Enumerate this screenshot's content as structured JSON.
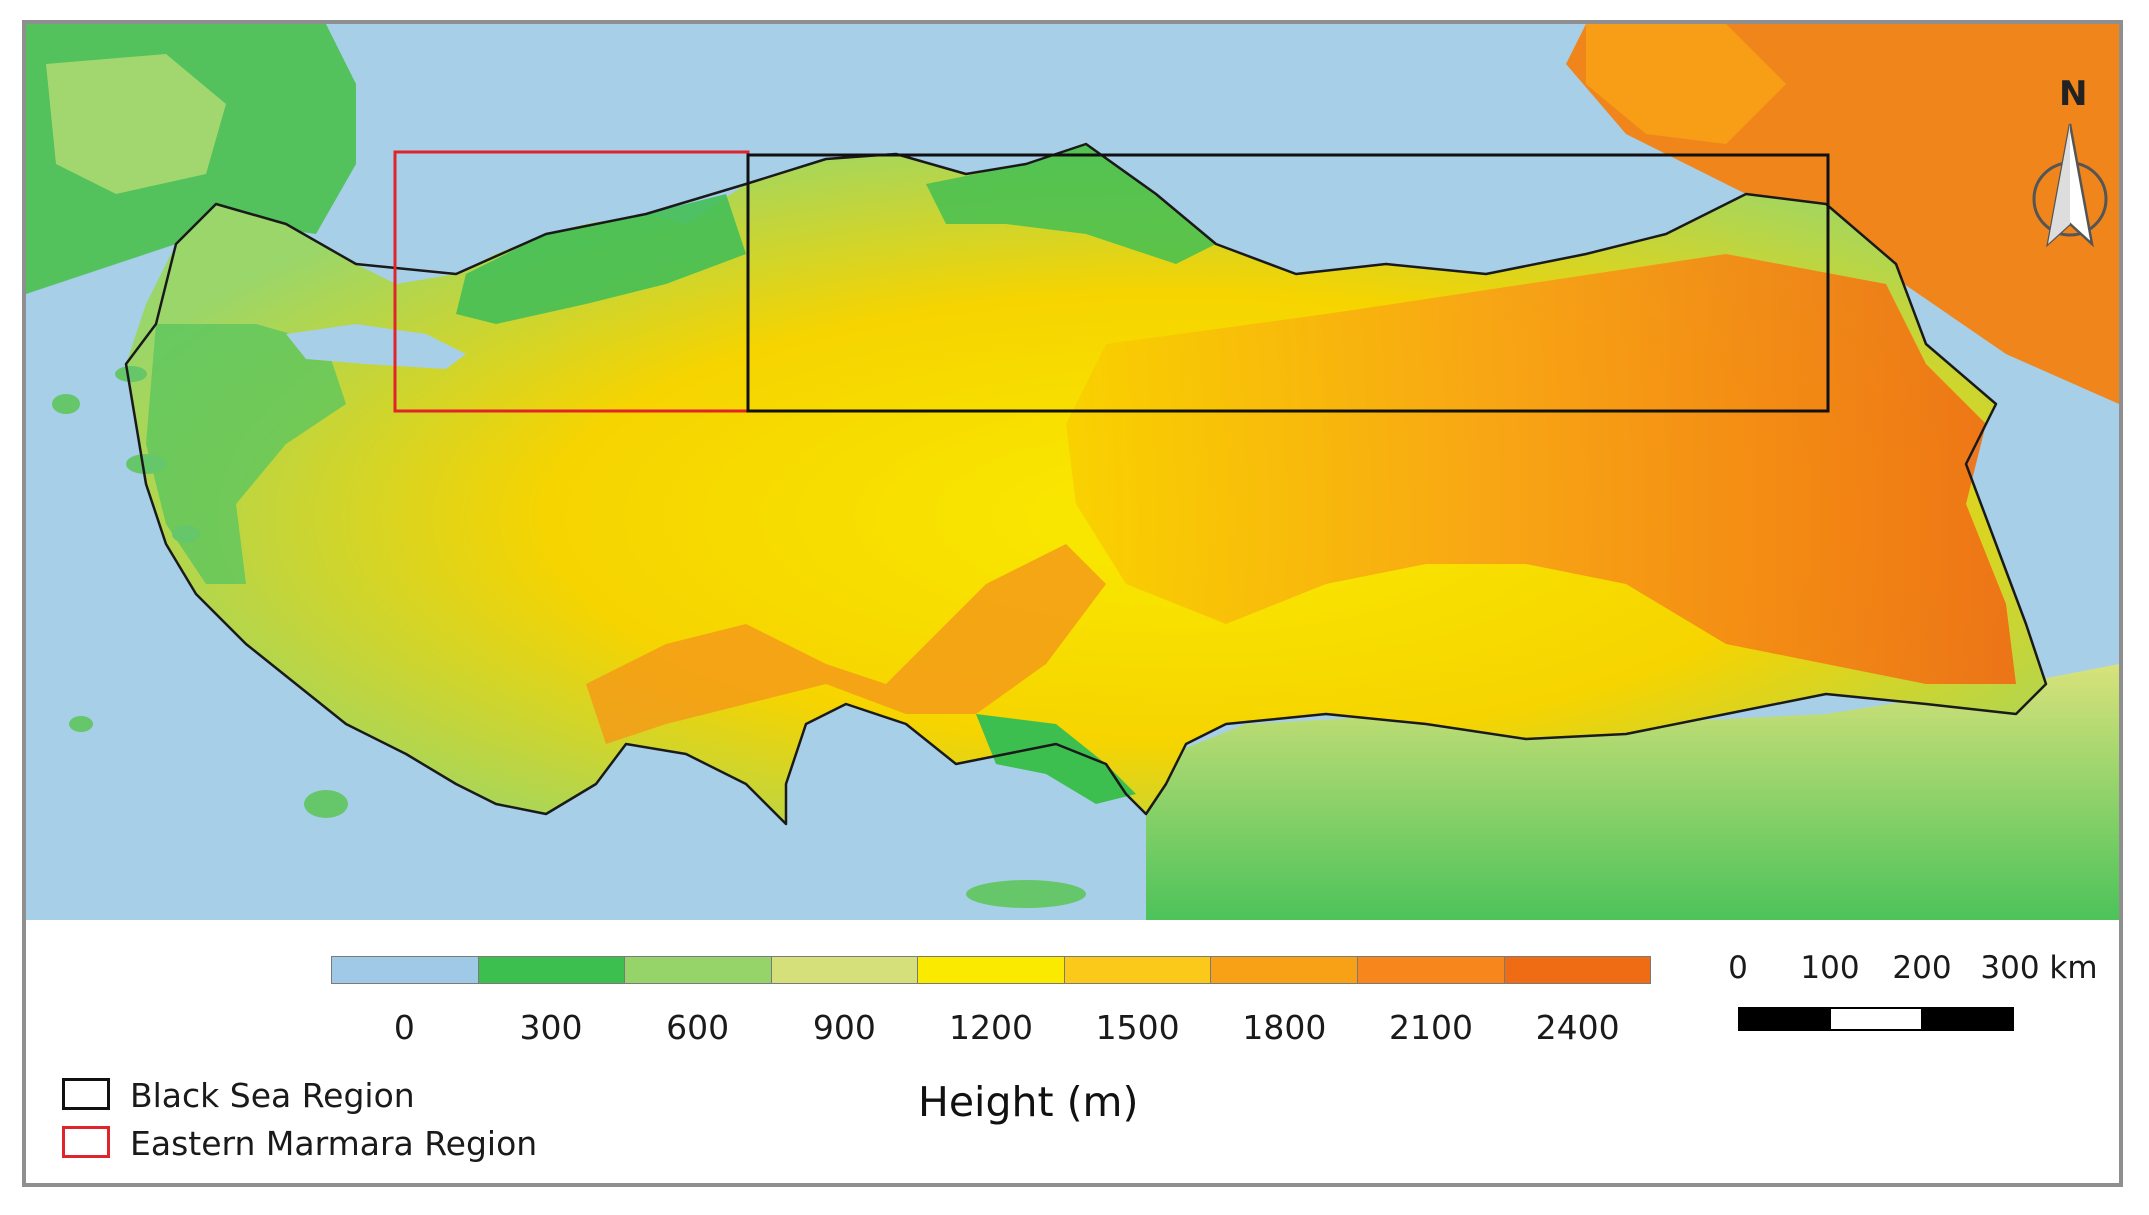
{
  "colors": {
    "sea": "#a7cfe8",
    "black_sea_box": "#111111",
    "marmara_box": "#e0242c",
    "border": "#1a1a1a"
  },
  "colorbar": {
    "ticks": [
      "0",
      "300",
      "600",
      "900",
      "1200",
      "1500",
      "1800",
      "2100",
      "2400"
    ],
    "colors": [
      "#9fc9e6",
      "#3cbf4f",
      "#96d46a",
      "#d6e07a",
      "#f9ea00",
      "#fbc91a",
      "#f8a116",
      "#f7861c",
      "#ef6c14"
    ],
    "title": "Height (m)"
  },
  "legend": {
    "items": [
      {
        "label": "Black Sea Region",
        "color": "#111111"
      },
      {
        "label": "Eastern Marmara Region",
        "color": "#e0242c"
      }
    ]
  },
  "scalebar": {
    "labels": [
      "0",
      "100",
      "200",
      "300 km"
    ]
  },
  "north_arrow": {
    "label": "N",
    "icon": "north-arrow-icon"
  }
}
